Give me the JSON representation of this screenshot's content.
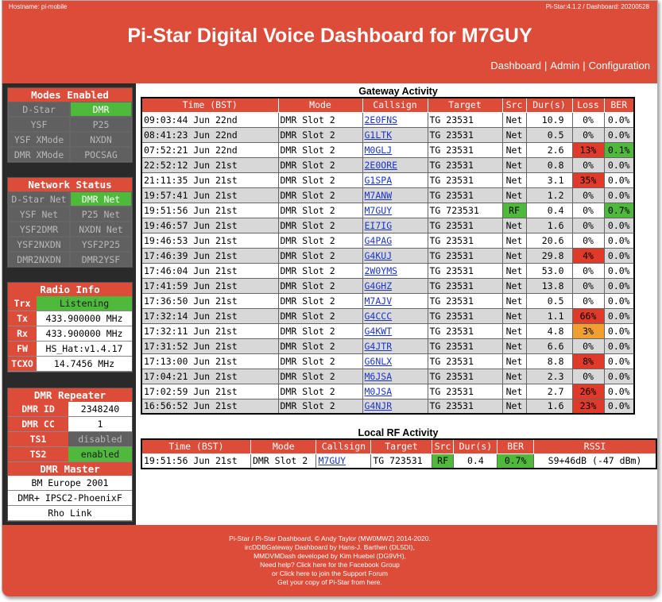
{
  "header": {
    "hostname": "Hostname: pi-mobile",
    "version": "Pi-Star:4.1.2 / Dashboard: 20200528",
    "title": "Pi-Star Digital Voice Dashboard for M7GUY",
    "nav": [
      "Dashboard",
      "Admin",
      "Configuration"
    ],
    "colors": {
      "accent": "#dd4b39",
      "on": "#4eb93b",
      "off": "#606060"
    }
  },
  "modes": {
    "title": "Modes Enabled",
    "items": [
      {
        "label": "D-Star",
        "state": "off"
      },
      {
        "label": "DMR",
        "state": "on"
      },
      {
        "label": "YSF",
        "state": "off"
      },
      {
        "label": "P25",
        "state": "off"
      },
      {
        "label": "YSF XMode",
        "state": "off"
      },
      {
        "label": "NXDN",
        "state": "off"
      },
      {
        "label": "DMR XMode",
        "state": "off"
      },
      {
        "label": "POCSAG",
        "state": "off"
      }
    ]
  },
  "network": {
    "title": "Network Status",
    "items": [
      {
        "label": "D-Star Net",
        "state": "off"
      },
      {
        "label": "DMR Net",
        "state": "on"
      },
      {
        "label": "YSF Net",
        "state": "off"
      },
      {
        "label": "P25 Net",
        "state": "off"
      },
      {
        "label": "YSF2DMR",
        "state": "off"
      },
      {
        "label": "NXDN Net",
        "state": "off"
      },
      {
        "label": "YSF2NXDN",
        "state": "off"
      },
      {
        "label": "YSF2P25",
        "state": "off"
      },
      {
        "label": "DMR2NXDN",
        "state": "off"
      },
      {
        "label": "DMR2YSF",
        "state": "off"
      }
    ]
  },
  "radio": {
    "title": "Radio Info",
    "rows": [
      {
        "key": "Trx",
        "value": "Listening",
        "style": "green"
      },
      {
        "key": "Tx",
        "value": "433.900000 MHz",
        "style": ""
      },
      {
        "key": "Rx",
        "value": "433.900000 MHz",
        "style": ""
      },
      {
        "key": "FW",
        "value": "HS_Hat:v1.4.17",
        "style": ""
      },
      {
        "key": "TCXO",
        "value": "14.7456 MHz",
        "style": ""
      }
    ]
  },
  "dmr": {
    "title": "DMR Repeater",
    "rows": [
      {
        "key": "DMR ID",
        "value": "2348240",
        "style": ""
      },
      {
        "key": "DMR CC",
        "value": "1",
        "style": ""
      },
      {
        "key": "TS1",
        "value": "disabled",
        "style": "grey"
      },
      {
        "key": "TS2",
        "value": "enabled",
        "style": "green"
      }
    ],
    "master_title": "DMR Master",
    "masters": [
      "BM Europe 2001",
      "DMR+ IPSC2-PhoenixF",
      "Rho Link"
    ]
  },
  "gateway": {
    "title": "Gateway Activity",
    "headers": [
      "Time (BST)",
      "Mode",
      "Callsign",
      "Target",
      "Src",
      "Dur(s)",
      "Loss",
      "BER"
    ],
    "rows": [
      {
        "time": "09:03:44 Jun 22nd",
        "mode": "DMR Slot 2",
        "call": "2E0FNS",
        "target": "TG 23531",
        "src": "Net",
        "dur": "10.9",
        "loss": "0%",
        "ber": "0.0%",
        "loss_c": "",
        "ber_c": "",
        "src_c": ""
      },
      {
        "time": "08:41:23 Jun 22nd",
        "mode": "DMR Slot 2",
        "call": "G1LTK",
        "target": "TG 23531",
        "src": "Net",
        "dur": "0.5",
        "loss": "0%",
        "ber": "0.0%",
        "loss_c": "",
        "ber_c": "",
        "src_c": ""
      },
      {
        "time": "07:52:21 Jun 22nd",
        "mode": "DMR Slot 2",
        "call": "M0GLJ",
        "target": "TG 23531",
        "src": "Net",
        "dur": "2.6",
        "loss": "13%",
        "ber": "0.1%",
        "loss_c": "red",
        "ber_c": "green",
        "src_c": ""
      },
      {
        "time": "22:52:12 Jun 21st",
        "mode": "DMR Slot 2",
        "call": "2E0ORE",
        "target": "TG 23531",
        "src": "Net",
        "dur": "0.8",
        "loss": "0%",
        "ber": "0.0%",
        "loss_c": "",
        "ber_c": "",
        "src_c": ""
      },
      {
        "time": "21:11:35 Jun 21st",
        "mode": "DMR Slot 2",
        "call": "G1SPA",
        "target": "TG 23531",
        "src": "Net",
        "dur": "3.1",
        "loss": "35%",
        "ber": "0.0%",
        "loss_c": "red",
        "ber_c": "",
        "src_c": ""
      },
      {
        "time": "19:57:41 Jun 21st",
        "mode": "DMR Slot 2",
        "call": "M7ANW",
        "target": "TG 23531",
        "src": "Net",
        "dur": "1.2",
        "loss": "0%",
        "ber": "0.0%",
        "loss_c": "",
        "ber_c": "",
        "src_c": ""
      },
      {
        "time": "19:51:56 Jun 21st",
        "mode": "DMR Slot 2",
        "call": "M7GUY",
        "target": "TG 723531",
        "src": "RF",
        "dur": "0.4",
        "loss": "0%",
        "ber": "0.7%",
        "loss_c": "",
        "ber_c": "green",
        "src_c": "green"
      },
      {
        "time": "19:46:57 Jun 21st",
        "mode": "DMR Slot 2",
        "call": "EI7IG",
        "target": "TG 23531",
        "src": "Net",
        "dur": "1.6",
        "loss": "0%",
        "ber": "0.0%",
        "loss_c": "",
        "ber_c": "",
        "src_c": ""
      },
      {
        "time": "19:46:53 Jun 21st",
        "mode": "DMR Slot 2",
        "call": "G4PAG",
        "target": "TG 23531",
        "src": "Net",
        "dur": "20.6",
        "loss": "0%",
        "ber": "0.0%",
        "loss_c": "",
        "ber_c": "",
        "src_c": ""
      },
      {
        "time": "17:46:39 Jun 21st",
        "mode": "DMR Slot 2",
        "call": "G4KUJ",
        "target": "TG 23531",
        "src": "Net",
        "dur": "29.8",
        "loss": "4%",
        "ber": "0.0%",
        "loss_c": "red",
        "ber_c": "",
        "src_c": ""
      },
      {
        "time": "17:46:04 Jun 21st",
        "mode": "DMR Slot 2",
        "call": "2W0YMS",
        "target": "TG 23531",
        "src": "Net",
        "dur": "53.0",
        "loss": "0%",
        "ber": "0.0%",
        "loss_c": "",
        "ber_c": "",
        "src_c": ""
      },
      {
        "time": "17:41:59 Jun 21st",
        "mode": "DMR Slot 2",
        "call": "G4GHZ",
        "target": "TG 23531",
        "src": "Net",
        "dur": "13.8",
        "loss": "0%",
        "ber": "0.0%",
        "loss_c": "",
        "ber_c": "",
        "src_c": ""
      },
      {
        "time": "17:36:50 Jun 21st",
        "mode": "DMR Slot 2",
        "call": "M7AJV",
        "target": "TG 23531",
        "src": "Net",
        "dur": "0.5",
        "loss": "0%",
        "ber": "0.0%",
        "loss_c": "",
        "ber_c": "",
        "src_c": ""
      },
      {
        "time": "17:32:14 Jun 21st",
        "mode": "DMR Slot 2",
        "call": "G4CCC",
        "target": "TG 23531",
        "src": "Net",
        "dur": "1.1",
        "loss": "66%",
        "ber": "0.0%",
        "loss_c": "red",
        "ber_c": "",
        "src_c": ""
      },
      {
        "time": "17:32:11 Jun 21st",
        "mode": "DMR Slot 2",
        "call": "G4KWT",
        "target": "TG 23531",
        "src": "Net",
        "dur": "4.8",
        "loss": "3%",
        "ber": "0.0%",
        "loss_c": "amber",
        "ber_c": "",
        "src_c": ""
      },
      {
        "time": "17:31:52 Jun 21st",
        "mode": "DMR Slot 2",
        "call": "G4JTR",
        "target": "TG 23531",
        "src": "Net",
        "dur": "6.6",
        "loss": "0%",
        "ber": "0.0%",
        "loss_c": "",
        "ber_c": "",
        "src_c": ""
      },
      {
        "time": "17:13:00 Jun 21st",
        "mode": "DMR Slot 2",
        "call": "G6NLX",
        "target": "TG 23531",
        "src": "Net",
        "dur": "8.8",
        "loss": "8%",
        "ber": "0.0%",
        "loss_c": "red",
        "ber_c": "",
        "src_c": ""
      },
      {
        "time": "17:04:21 Jun 21st",
        "mode": "DMR Slot 2",
        "call": "M6JSA",
        "target": "TG 23531",
        "src": "Net",
        "dur": "2.3",
        "loss": "0%",
        "ber": "0.0%",
        "loss_c": "",
        "ber_c": "",
        "src_c": ""
      },
      {
        "time": "17:02:59 Jun 21st",
        "mode": "DMR Slot 2",
        "call": "M0JSA",
        "target": "TG 23531",
        "src": "Net",
        "dur": "2.7",
        "loss": "26%",
        "ber": "0.0%",
        "loss_c": "red",
        "ber_c": "",
        "src_c": ""
      },
      {
        "time": "16:56:52 Jun 21st",
        "mode": "DMR Slot 2",
        "call": "G4NJR",
        "target": "TG 23531",
        "src": "Net",
        "dur": "1.6",
        "loss": "23%",
        "ber": "0.0%",
        "loss_c": "red",
        "ber_c": "",
        "src_c": ""
      }
    ]
  },
  "localrf": {
    "title": "Local RF Activity",
    "headers": [
      "Time (BST)",
      "Mode",
      "Callsign",
      "Target",
      "Src",
      "Dur(s)",
      "BER",
      "RSSI"
    ],
    "rows": [
      {
        "time": "19:51:56 Jun 21st",
        "mode": "DMR Slot 2",
        "call": "M7GUY",
        "target": "TG 723531",
        "src": "RF",
        "dur": "0.4",
        "ber": "0.7%",
        "rssi": "S9+46dB (-47 dBm)"
      }
    ]
  },
  "footer": {
    "lines": [
      "Pi-Star / Pi-Star Dashboard, © Andy Taylor (MW0MWZ) 2014-2020.",
      "ircDDBGateway Dashboard by Hans-J. Barthen (DL5DI),",
      "MMDVMDash developed by Kim Huebel (DG9VH),",
      "Need help? Click here for the Facebook Group",
      "or Click here to join the Support Forum",
      "Get your copy of Pi-Star from here."
    ]
  }
}
